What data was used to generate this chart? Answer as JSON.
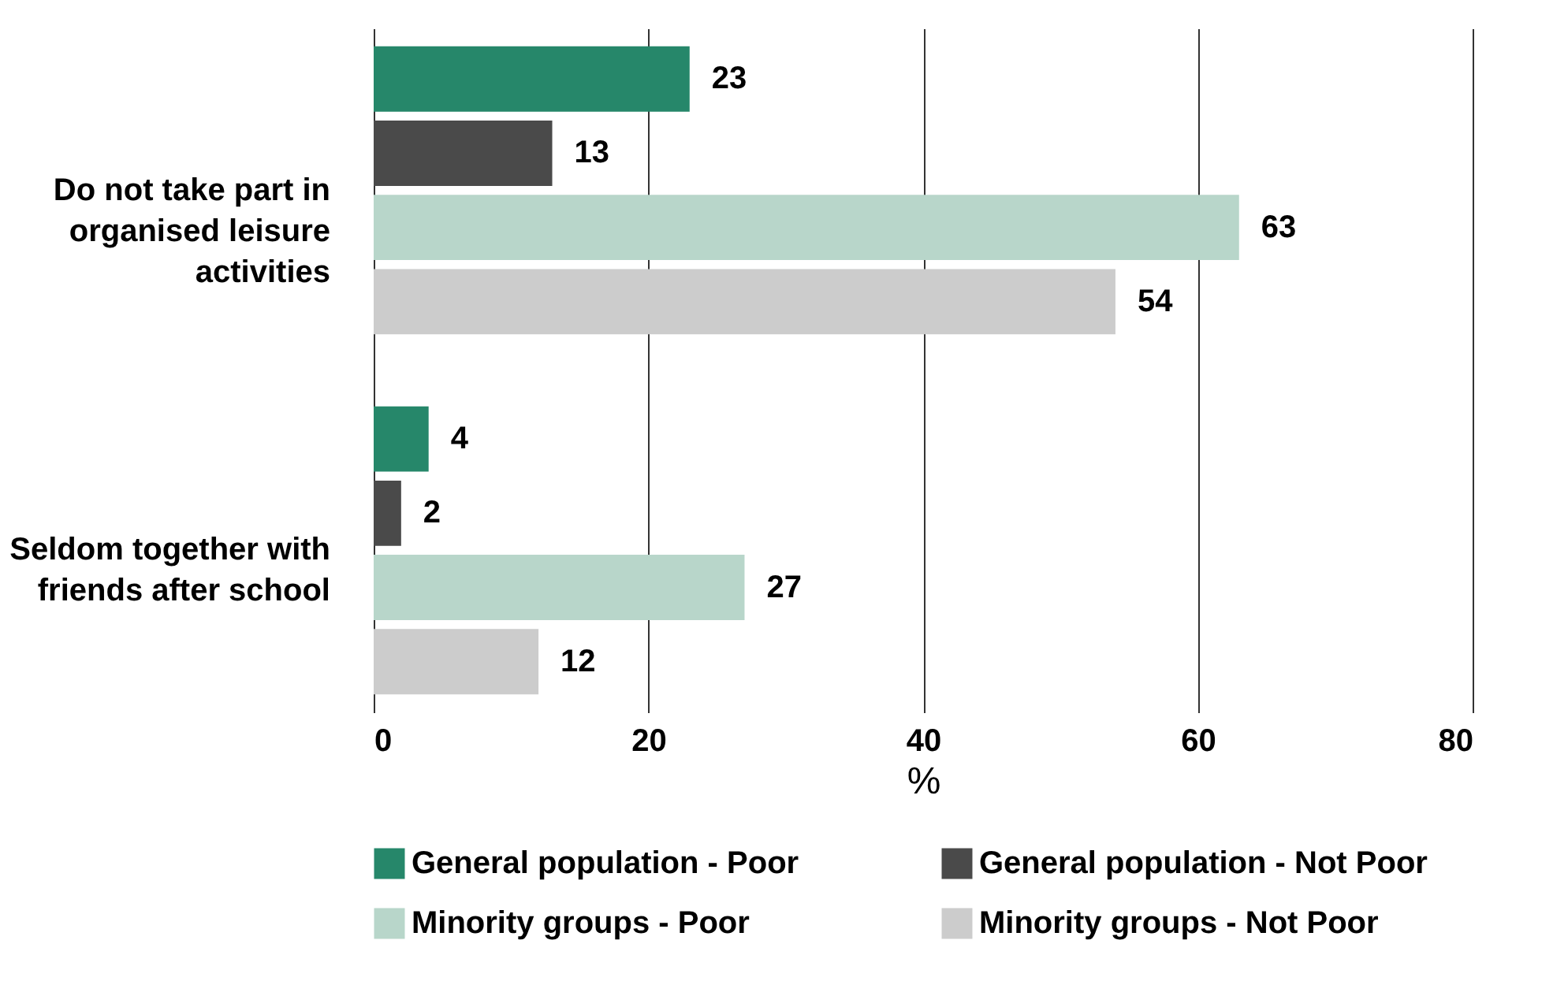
{
  "chart_data": {
    "type": "bar",
    "orientation": "horizontal",
    "categories": [
      "Do not take part in organised leisure activities",
      "Seldom together with friends after school"
    ],
    "series": [
      {
        "name": "General population - Poor",
        "color": "#26876a",
        "values": [
          23,
          4
        ]
      },
      {
        "name": "General population - Not Poor",
        "color": "#4a4a4a",
        "values": [
          13,
          2
        ]
      },
      {
        "name": "Minority groups - Poor",
        "color": "#b8d6ca",
        "values": [
          63,
          27
        ]
      },
      {
        "name": "Minority groups - Not Poor",
        "color": "#cccccc",
        "values": [
          54,
          12
        ]
      }
    ],
    "xlabel": "%",
    "xlim": [
      0,
      80
    ],
    "xticks": [
      0,
      20,
      40,
      60,
      80
    ],
    "grid": "x",
    "legend": "bottom",
    "data_labels": true
  }
}
